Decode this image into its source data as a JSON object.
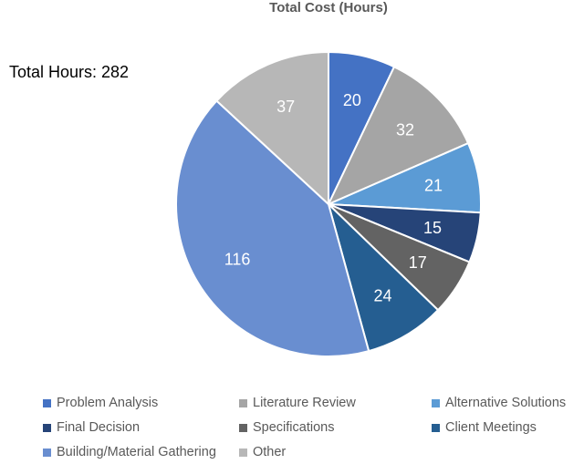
{
  "chart_data": {
    "type": "pie",
    "title": "Total Cost (Hours)",
    "annotation": "Total Hours: 282",
    "slices": [
      {
        "label": "Problem Analysis",
        "value": 20,
        "color": "#4472C4"
      },
      {
        "label": "Literature Review",
        "value": 32,
        "color": "#A5A5A5"
      },
      {
        "label": "Alternative Solutions",
        "value": 21,
        "color": "#5B9BD5"
      },
      {
        "label": "Final Decision",
        "value": 15,
        "color": "#264478"
      },
      {
        "label": "Specifications",
        "value": 17,
        "color": "#636363"
      },
      {
        "label": "Client Meetings",
        "value": 24,
        "color": "#255E91"
      },
      {
        "label": "Building/Material Gathering",
        "value": 116,
        "color": "#698ED0"
      },
      {
        "label": "Other",
        "value": 37,
        "color": "#B7B7B7"
      }
    ],
    "legend_position": "bottom"
  }
}
